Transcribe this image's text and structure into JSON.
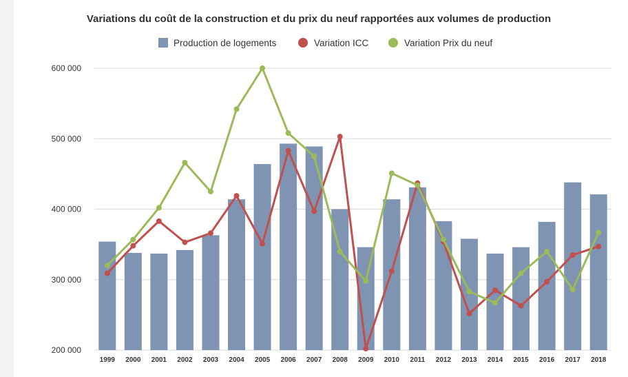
{
  "chart_data": {
    "type": "bar",
    "title": "Variations du coût de la construction et du prix du neuf rapportées aux volumes de production",
    "categories": [
      "1999",
      "2000",
      "2001",
      "2002",
      "2003",
      "2004",
      "2005",
      "2006",
      "2007",
      "2008",
      "2009",
      "2010",
      "2011",
      "2012",
      "2013",
      "2014",
      "2015",
      "2016",
      "2017",
      "2018"
    ],
    "ylim": [
      200000,
      600000
    ],
    "yticks": [
      {
        "value": 200000,
        "label": "200 000"
      },
      {
        "value": 300000,
        "label": "300 000"
      },
      {
        "value": 400000,
        "label": "400 000"
      },
      {
        "value": 500000,
        "label": "500 000"
      },
      {
        "value": 600000,
        "label": "600 000"
      }
    ],
    "grid": true,
    "legend_position": "top",
    "series": [
      {
        "name": "Production de logements",
        "kind": "bar",
        "color": "#7f93b3",
        "values": [
          354000,
          338000,
          337000,
          342000,
          363000,
          414000,
          464000,
          493000,
          489000,
          400000,
          346000,
          414000,
          431000,
          383000,
          358000,
          337000,
          346000,
          382000,
          438000,
          421000
        ]
      },
      {
        "name": "Variation ICC",
        "kind": "line",
        "color": "#c0504d",
        "values": [
          309000,
          348000,
          383000,
          353000,
          366000,
          419000,
          351000,
          483000,
          397000,
          503000,
          202000,
          312000,
          437000,
          354000,
          252000,
          285000,
          263000,
          297000,
          335000,
          347000
        ]
      },
      {
        "name": "Variation Prix du neuf",
        "kind": "line",
        "color": "#9bbb59",
        "values": [
          320000,
          357000,
          402000,
          466000,
          425000,
          542000,
          600000,
          508000,
          475000,
          340000,
          298000,
          451000,
          434000,
          357000,
          283000,
          267000,
          309000,
          340000,
          286000,
          367000
        ]
      }
    ]
  }
}
